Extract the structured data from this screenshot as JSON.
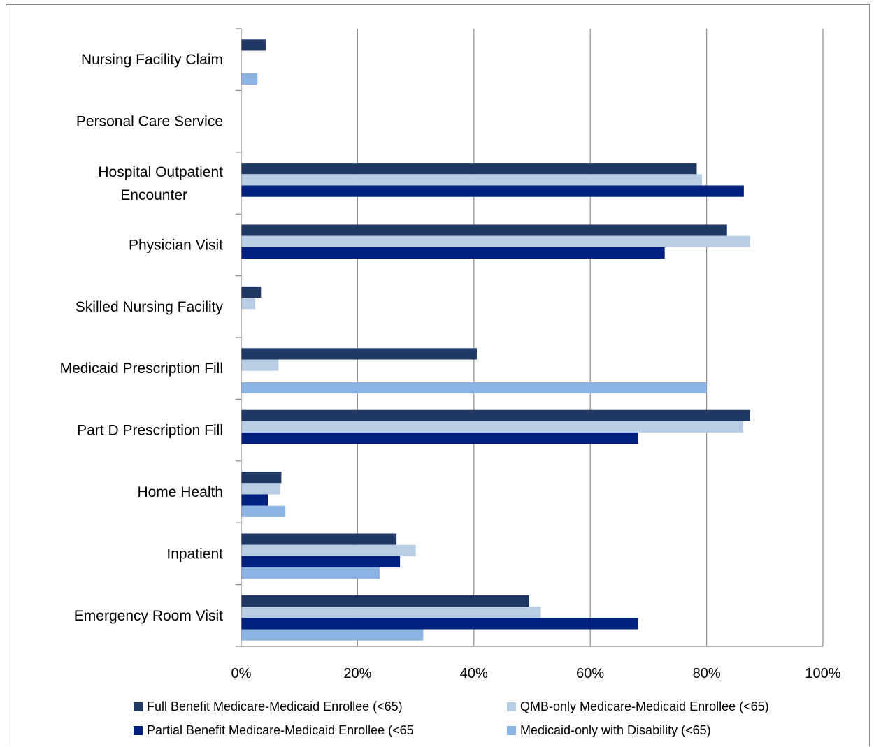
{
  "chart_data": {
    "type": "bar",
    "orientation": "horizontal",
    "categories": [
      "Nursing Facility Claim",
      "Personal Care Service",
      "Hospital Outpatient Encounter",
      "Physician Visit",
      "Skilled Nursing Facility",
      "Medicaid Prescription Fill",
      "Part D Prescription Fill",
      "Home Health",
      "Inpatient",
      "Emergency Room Visit"
    ],
    "series": [
      {
        "name": "Full Benefit Medicare-Medicaid Enrollee (<65)",
        "color": "#1f3864",
        "values": [
          4.2,
          0,
          78.3,
          83.5,
          3.4,
          40.5,
          87.5,
          6.9,
          26.7,
          49.5
        ]
      },
      {
        "name": "QMB-only Medicare-Medicaid Enrollee (<65)",
        "color": "#b8cce4",
        "values": [
          0,
          0,
          79.2,
          87.5,
          2.4,
          6.4,
          86.3,
          6.7,
          30.0,
          51.5
        ]
      },
      {
        "name": "Partial Benefit Medicare-Medicaid Enrollee (<65",
        "color": "#002080",
        "values": [
          0,
          0,
          86.4,
          72.8,
          0,
          0,
          68.2,
          4.6,
          27.3,
          68.2
        ]
      },
      {
        "name": "Medicaid-only with Disability (<65)",
        "color": "#8db3e2",
        "values": [
          2.8,
          0,
          0,
          0,
          0,
          80.0,
          0,
          7.6,
          23.8,
          31.3
        ]
      }
    ],
    "x_ticks": [
      "0%",
      "20%",
      "40%",
      "60%",
      "80%",
      "100%"
    ],
    "xlim": [
      0,
      100
    ],
    "grid": true,
    "legend": "bottom",
    "title": "",
    "xlabel": "",
    "ylabel": ""
  }
}
